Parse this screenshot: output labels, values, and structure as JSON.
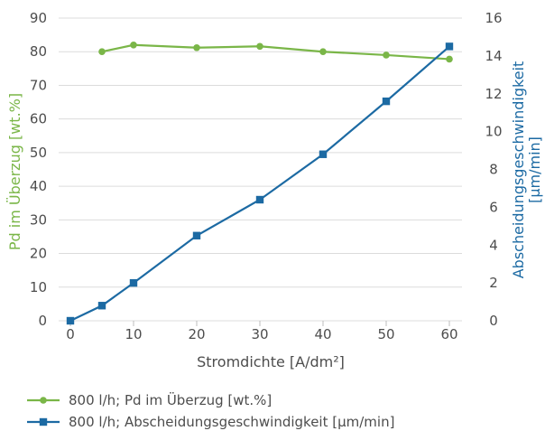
{
  "chart_data": {
    "type": "line",
    "title": "",
    "xlabel": "Stromdichte [A/dm²]",
    "ylabel_left": "Pd im Überzug [wt.%]",
    "ylabel_right_line1": "Abscheidungsgeschwindigkeit",
    "ylabel_right_line2": "[µm/min]",
    "x_ticks": [
      "0",
      "10",
      "20",
      "30",
      "40",
      "50",
      "60"
    ],
    "xlim": [
      0,
      60
    ],
    "y_left_ticks": [
      "0",
      "10",
      "20",
      "30",
      "40",
      "50",
      "60",
      "70",
      "80",
      "90"
    ],
    "ylim_left": [
      0,
      90
    ],
    "y_right_ticks": [
      "0",
      "2",
      "4",
      "6",
      "8",
      "10",
      "12",
      "14",
      "16"
    ],
    "ylim_right": [
      0,
      16
    ],
    "grid": "horizontal",
    "legend_position": "bottom-left",
    "series": [
      {
        "name": "800 l/h; Pd im Überzug [wt.%]",
        "axis": "left",
        "marker": "circle",
        "color": "#7ab648",
        "x": [
          5,
          10,
          20,
          30,
          40,
          50,
          60
        ],
        "y": [
          80,
          82,
          81.2,
          81.6,
          80,
          79,
          77.8
        ]
      },
      {
        "name": "800 l/h; Abscheidungsgeschwindigkeit [µm/min]",
        "axis": "right",
        "marker": "square",
        "color": "#1c6aa3",
        "x": [
          0,
          5,
          10,
          20,
          30,
          40,
          50,
          60
        ],
        "y": [
          0,
          0.8,
          2.0,
          4.5,
          6.4,
          8.8,
          11.6,
          14.5
        ]
      }
    ]
  }
}
